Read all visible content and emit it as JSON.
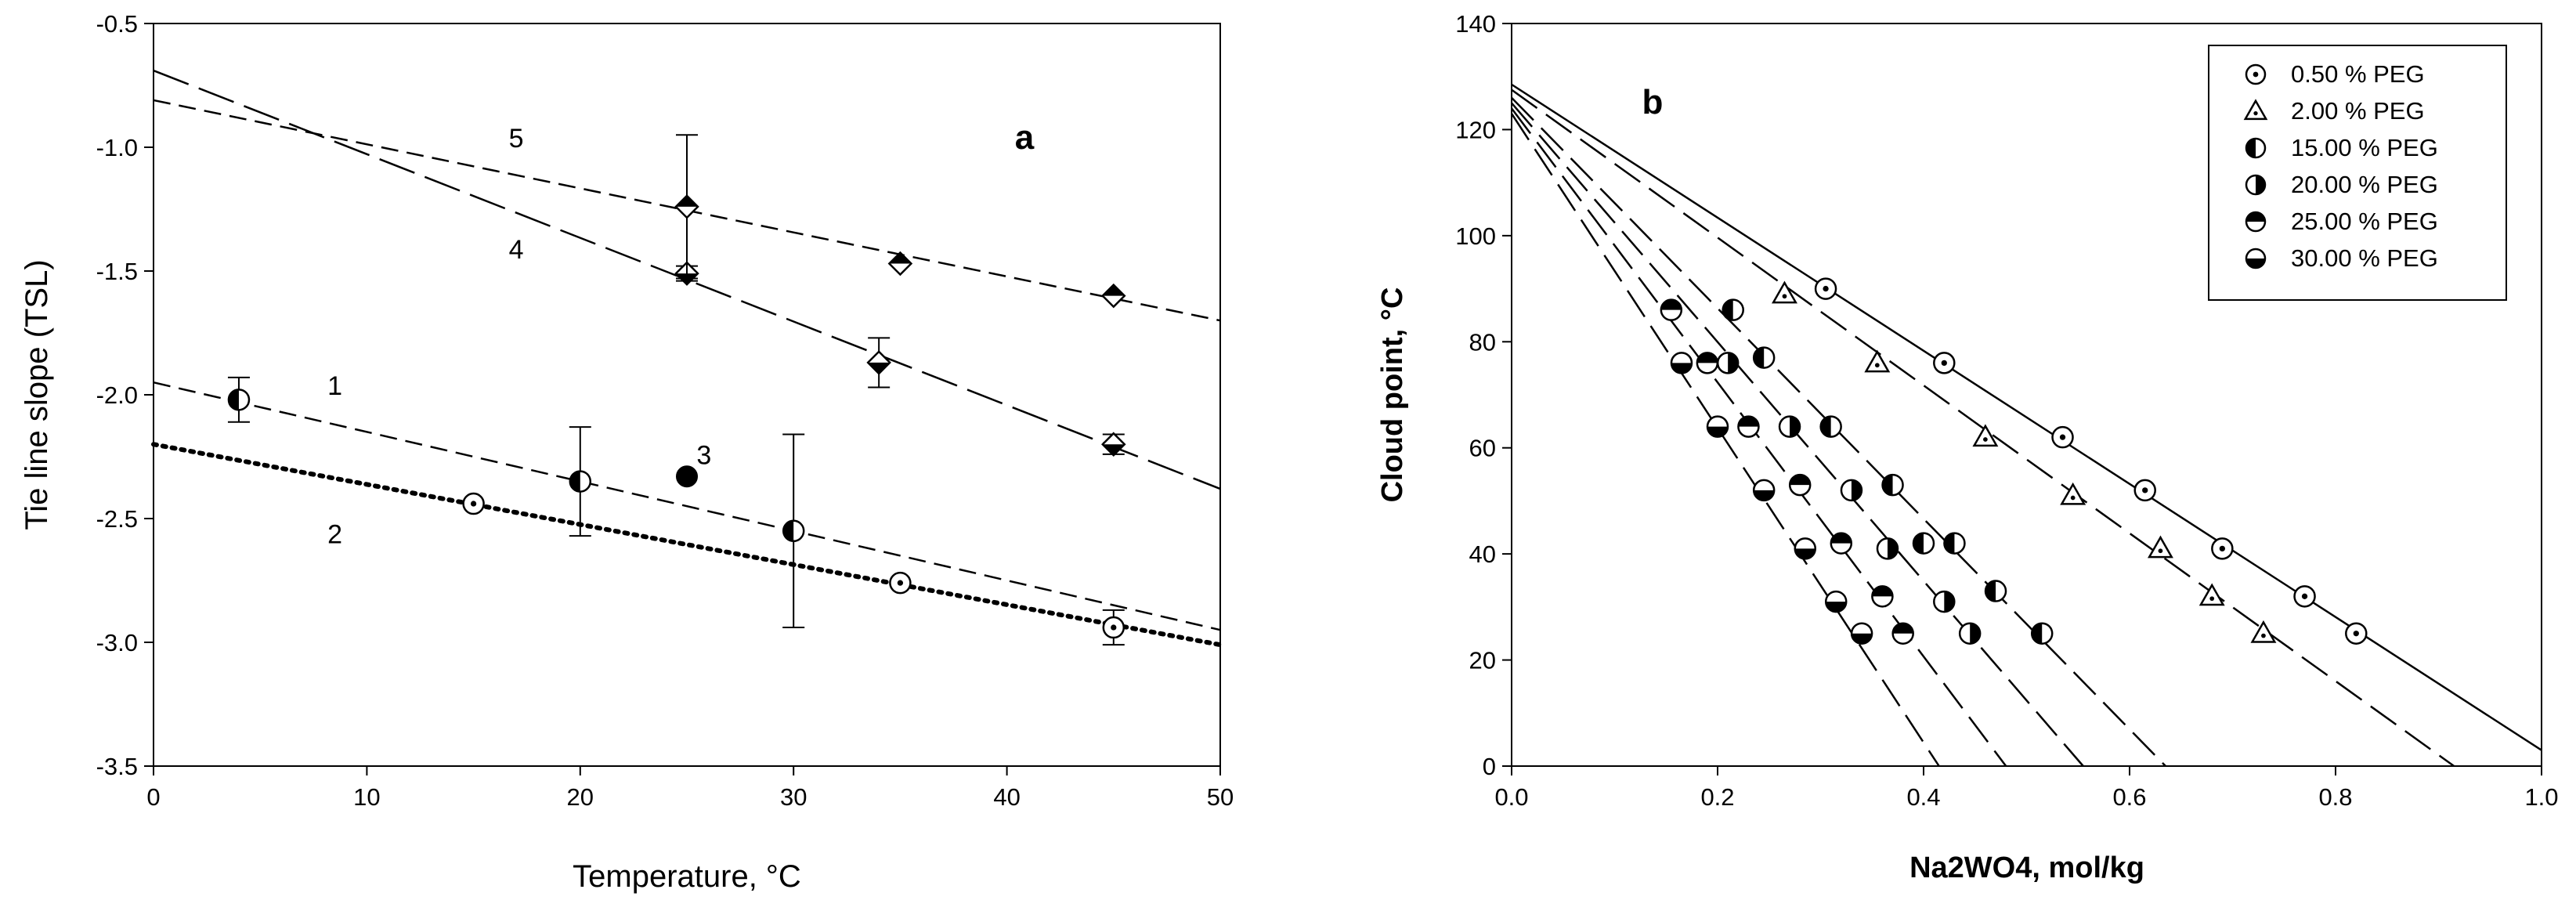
{
  "chart_data": [
    {
      "panel": "a",
      "type": "scatter",
      "xlabel": "Temperature, °C",
      "ylabel": "Tie line slope (TSL)",
      "xlim": [
        0,
        50
      ],
      "ylim": [
        -3.5,
        -0.5
      ],
      "xticks": [
        "0",
        "10",
        "20",
        "30",
        "40",
        "50"
      ],
      "yticks": [
        "-0.5",
        "-1.0",
        "-1.5",
        "-2.0",
        "-2.5",
        "-3.0",
        "-3.5"
      ],
      "series": [
        {
          "name": "1",
          "marker": "half-left",
          "line": "dashed",
          "points": [
            {
              "x": 4,
              "y": -2.02,
              "err": 0.09
            },
            {
              "x": 20,
              "y": -2.35,
              "err": 0.22
            },
            {
              "x": 30,
              "y": -2.55,
              "err": 0.39
            }
          ],
          "fit": [
            [
              0,
              -1.95
            ],
            [
              50,
              -2.95
            ]
          ]
        },
        {
          "name": "2",
          "marker": "dot-circle",
          "line": "dotted",
          "points": [
            {
              "x": 15,
              "y": -2.44
            },
            {
              "x": 35,
              "y": -2.76
            },
            {
              "x": 45,
              "y": -2.94,
              "err": 0.07
            }
          ],
          "fit": [
            [
              0,
              -2.2
            ],
            [
              50,
              -3.01
            ]
          ]
        },
        {
          "name": "3",
          "marker": "filled",
          "points": [
            {
              "x": 25,
              "y": -2.33
            }
          ]
        },
        {
          "name": "4",
          "marker": "diamond-bottom",
          "line": "long-dashed",
          "points": [
            {
              "x": 25,
              "y": -1.51,
              "err": 0.03
            },
            {
              "x": 34,
              "y": -1.87,
              "err": 0.1
            },
            {
              "x": 45,
              "y": -2.2,
              "err": 0.04
            }
          ],
          "fit": [
            [
              0,
              -0.69
            ],
            [
              50,
              -2.38
            ]
          ]
        },
        {
          "name": "5",
          "marker": "diamond-top",
          "line": "dashed",
          "points": [
            {
              "x": 25,
              "y": -1.24,
              "err": 0.29
            },
            {
              "x": 35,
              "y": -1.47
            },
            {
              "x": 45,
              "y": -1.6
            }
          ],
          "fit": [
            [
              0,
              -0.81
            ],
            [
              50,
              -1.7
            ]
          ]
        }
      ],
      "annotations": [
        {
          "text": "5",
          "x": 17,
          "y": -1.0
        },
        {
          "text": "4",
          "x": 17,
          "y": -1.45
        },
        {
          "text": "1",
          "x": 8.5,
          "y": -2.0
        },
        {
          "text": "2",
          "x": 8.5,
          "y": -2.6
        },
        {
          "text": "3",
          "x": 25.8,
          "y": -2.28
        }
      ],
      "panel_label": "a"
    },
    {
      "panel": "b",
      "type": "scatter",
      "xlabel": "Na2WO4, mol/kg",
      "ylabel": "Cloud point, °C",
      "xlim": [
        0,
        1.0
      ],
      "ylim": [
        0,
        140
      ],
      "xticks": [
        "0.0",
        "0.2",
        "0.4",
        "0.6",
        "0.8",
        "1.0"
      ],
      "yticks": [
        "0",
        "20",
        "40",
        "60",
        "80",
        "100",
        "120",
        "140"
      ],
      "legend_position": "top-right",
      "series": [
        {
          "name": "0.50 % PEG",
          "marker": "dot-circle",
          "line": "solid",
          "points": [
            [
              0.305,
              90
            ],
            [
              0.42,
              76
            ],
            [
              0.535,
              62
            ],
            [
              0.615,
              52
            ],
            [
              0.69,
              41
            ],
            [
              0.77,
              32
            ],
            [
              0.82,
              25
            ]
          ],
          "fit": [
            [
              0,
              128.5
            ],
            [
              1.0,
              3
            ]
          ]
        },
        {
          "name": "2.00 % PEG",
          "marker": "triangle",
          "line": "dashed",
          "points": [
            [
              0.265,
              89
            ],
            [
              0.355,
              76
            ],
            [
              0.46,
              62
            ],
            [
              0.545,
              51
            ],
            [
              0.63,
              41
            ],
            [
              0.68,
              32
            ],
            [
              0.73,
              25
            ]
          ],
          "fit": [
            [
              0,
              127.5
            ],
            [
              0.915,
              0
            ]
          ]
        },
        {
          "name": "15.00 % PEG",
          "marker": "half-left",
          "line": "dashed",
          "points": [
            [
              0.215,
              86
            ],
            [
              0.245,
              77
            ],
            [
              0.31,
              64
            ],
            [
              0.37,
              53
            ],
            [
              0.4,
              42
            ],
            [
              0.43,
              42
            ],
            [
              0.47,
              33
            ],
            [
              0.515,
              25
            ]
          ],
          "fit": [
            [
              0,
              126
            ],
            [
              0.635,
              0
            ]
          ]
        },
        {
          "name": "20.00 % PEG",
          "marker": "half-right",
          "line": "dashed",
          "points": [
            [
              0.21,
              76
            ],
            [
              0.27,
              64
            ],
            [
              0.33,
              52
            ],
            [
              0.365,
              41
            ],
            [
              0.42,
              31
            ],
            [
              0.445,
              25
            ]
          ],
          "fit": [
            [
              0,
              125
            ],
            [
              0.555,
              0
            ]
          ]
        },
        {
          "name": "25.00 % PEG",
          "marker": "half-top",
          "line": "dashed",
          "points": [
            [
              0.155,
              86
            ],
            [
              0.19,
              76
            ],
            [
              0.23,
              64
            ],
            [
              0.28,
              53
            ],
            [
              0.32,
              42
            ],
            [
              0.36,
              32
            ],
            [
              0.38,
              25
            ]
          ],
          "fit": [
            [
              0,
              124
            ],
            [
              0.48,
              0
            ]
          ]
        },
        {
          "name": "30.00 % PEG",
          "marker": "half-bottom",
          "line": "dashed",
          "points": [
            [
              0.165,
              76
            ],
            [
              0.2,
              64
            ],
            [
              0.245,
              52
            ],
            [
              0.285,
              41
            ],
            [
              0.315,
              31
            ],
            [
              0.34,
              25
            ]
          ],
          "fit": [
            [
              0,
              123
            ],
            [
              0.415,
              0
            ]
          ]
        }
      ],
      "panel_label": "b"
    }
  ]
}
